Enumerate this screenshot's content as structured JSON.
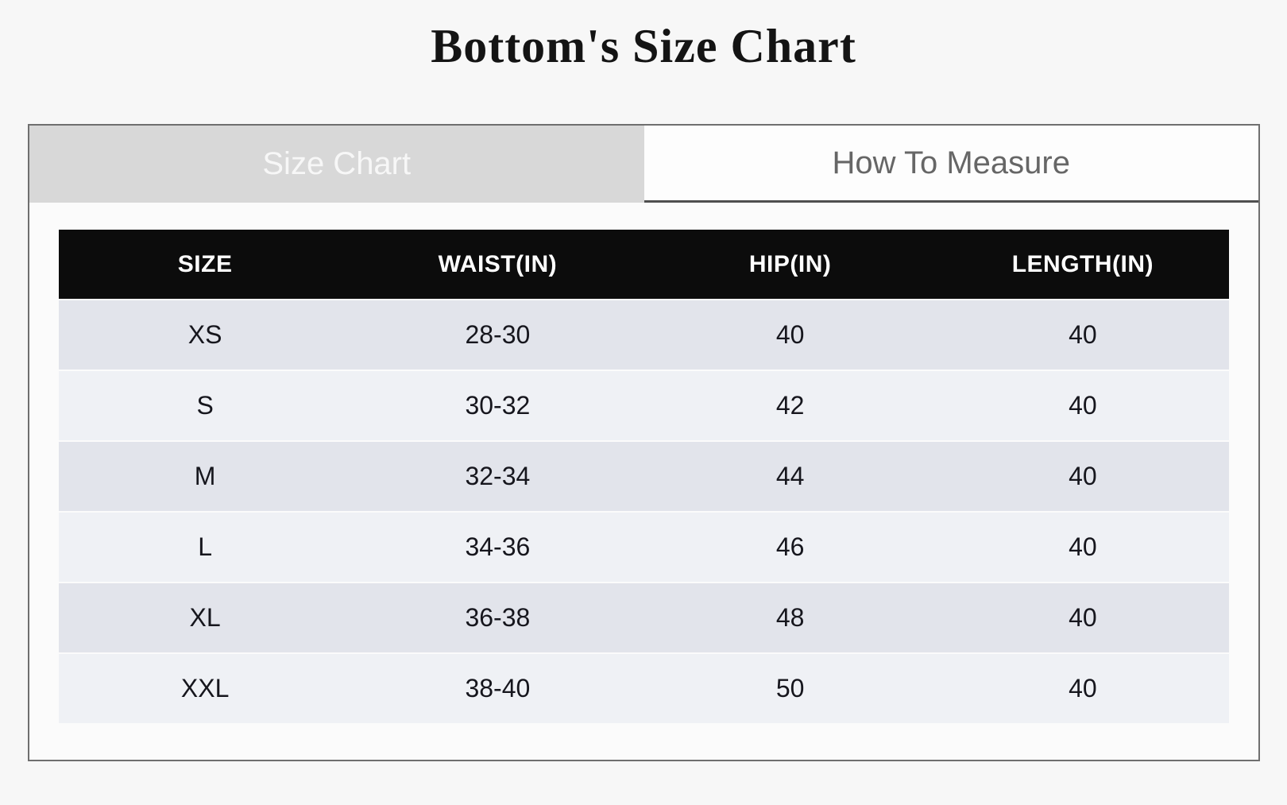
{
  "page": {
    "title": "Bottom's Size Chart"
  },
  "tabs": [
    {
      "label": "Size Chart",
      "active": true
    },
    {
      "label": "How To Measure",
      "active": false
    }
  ],
  "chart_data": {
    "type": "table",
    "title": "Bottom's Size Chart",
    "columns": [
      "SIZE",
      "WAIST(IN)",
      "HIP(IN)",
      "LENGTH(IN)"
    ],
    "rows": [
      [
        "XS",
        "28-30",
        "40",
        "40"
      ],
      [
        "S",
        "30-32",
        "42",
        "40"
      ],
      [
        "M",
        "32-34",
        "44",
        "40"
      ],
      [
        "L",
        "34-36",
        "46",
        "40"
      ],
      [
        "XL",
        "36-38",
        "48",
        "40"
      ],
      [
        "XXL",
        "38-40",
        "50",
        "40"
      ]
    ]
  },
  "colors": {
    "page_background": "#f7f7f7",
    "panel_background": "#fbfbfb",
    "panel_border": "#6f6f6f",
    "active_tab_background": "#d8d8d8",
    "active_tab_text": "#f7f7f7",
    "inactive_tab_background": "#fdfdfd",
    "inactive_tab_text": "#666666",
    "table_header_background": "#0c0c0c",
    "table_header_text": "#ffffff",
    "row_odd_background": "#e2e4eb",
    "row_even_background": "#eff1f5",
    "cell_text": "#16161d",
    "title_text": "#141414"
  }
}
